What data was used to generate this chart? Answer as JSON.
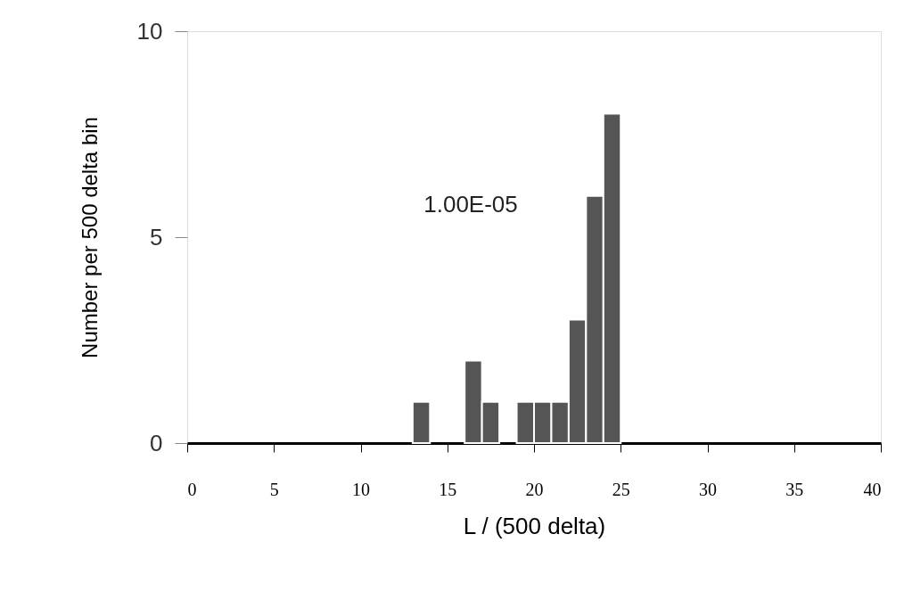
{
  "chart_data": {
    "type": "histogram",
    "xlabel": "L / (500 delta)",
    "ylabel": "Number per 500 delta bin",
    "bins": [
      13,
      14,
      15,
      16,
      17,
      18,
      19,
      20,
      21,
      22,
      23,
      24,
      25
    ],
    "values": [
      1,
      0,
      0,
      2,
      1,
      0,
      1,
      1,
      1,
      3,
      6,
      8
    ],
    "color": "#555555",
    "xlim": [
      0,
      40
    ],
    "xticks": [
      0,
      5,
      10,
      15,
      20,
      25,
      30,
      35,
      40
    ],
    "ylim": [
      0,
      10
    ],
    "yticks": [
      0,
      5,
      10
    ],
    "grid": false,
    "annotations": [
      "1.00E-05"
    ]
  }
}
